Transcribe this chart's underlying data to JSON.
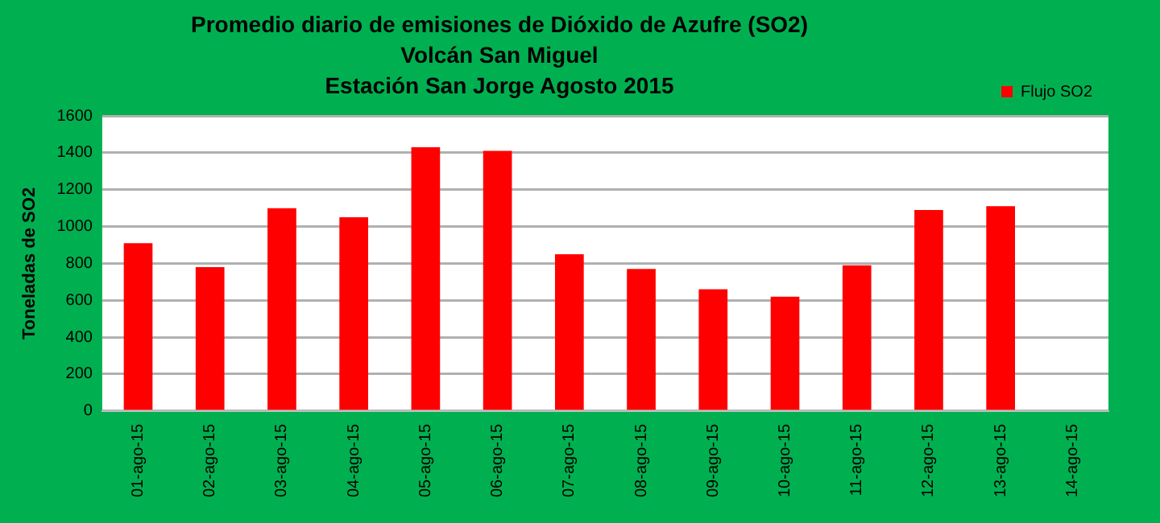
{
  "chart_data": {
    "type": "bar",
    "title": "Promedio diario de emisiones de Dióxido de Azufre (SO2)",
    "subtitle": "Volcán San Miguel\nEstación San Jorge Agosto 2015",
    "ylabel": "Toneladas de SO2",
    "categories": [
      "01-ago-15",
      "02-ago-15",
      "03-ago-15",
      "04-ago-15",
      "05-ago-15",
      "06-ago-15",
      "07-ago-15",
      "08-ago-15",
      "09-ago-15",
      "10-ago-15",
      "11-ago-15",
      "12-ago-15",
      "13-ago-15",
      "14-ago-15"
    ],
    "series": [
      {
        "name": "Flujo SO2",
        "color": "#ff0000",
        "values": [
          910,
          780,
          1100,
          1050,
          1430,
          1410,
          850,
          770,
          660,
          620,
          790,
          1090,
          1110,
          null
        ]
      }
    ],
    "ylim": [
      0,
      1600
    ],
    "yticks": [
      0,
      200,
      400,
      600,
      800,
      1000,
      1200,
      1400,
      1600
    ],
    "grid": "y",
    "legend": "top right"
  }
}
